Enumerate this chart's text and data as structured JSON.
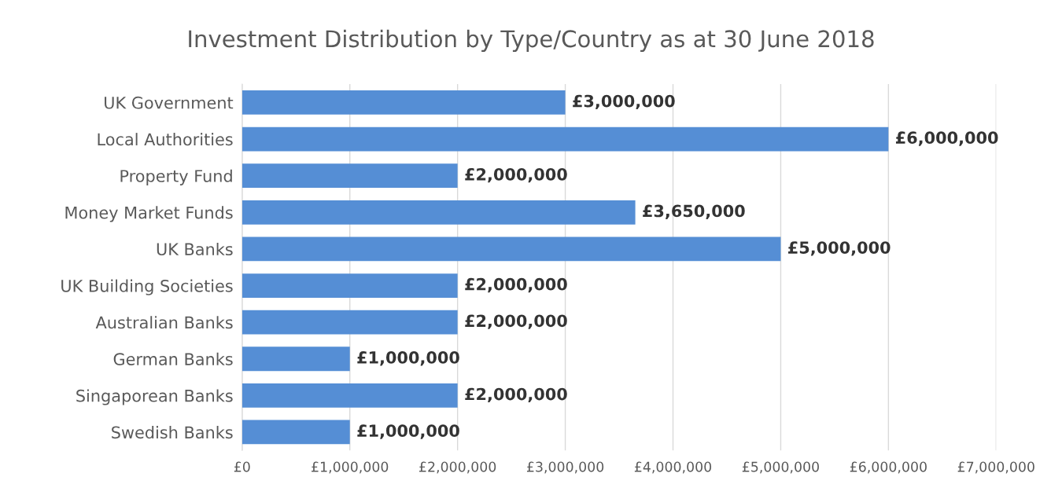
{
  "chart_data": {
    "type": "bar",
    "orientation": "horizontal",
    "title": "Investment Distribution by Type/Country as at 30 June 2018",
    "categories": [
      "UK Government",
      "Local Authorities",
      "Property Fund",
      "Money Market Funds",
      "UK Banks",
      "UK Building Societies",
      "Australian Banks",
      "German Banks",
      "Singaporean Banks",
      "Swedish Banks"
    ],
    "values": [
      3000000,
      6000000,
      2000000,
      3650000,
      5000000,
      2000000,
      2000000,
      1000000,
      2000000,
      1000000
    ],
    "value_labels": [
      "£3,000,000",
      "£6,000,000",
      "£2,000,000",
      "£3,650,000",
      "£5,000,000",
      "£2,000,000",
      "£2,000,000",
      "£1,000,000",
      "£2,000,000",
      "£1,000,000"
    ],
    "color": "#558ed5",
    "xlim": [
      0,
      7000000
    ],
    "xticks": [
      {
        "value": 0,
        "label": "£0"
      },
      {
        "value": 1000000,
        "label": "£1,000,000"
      },
      {
        "value": 2000000,
        "label": "£2,000,000"
      },
      {
        "value": 3000000,
        "label": "£3,000,000"
      },
      {
        "value": 4000000,
        "label": "£4,000,000"
      },
      {
        "value": 5000000,
        "label": "£5,000,000"
      },
      {
        "value": 6000000,
        "label": "£6,000,000"
      },
      {
        "value": 7000000,
        "label": "£7,000,000"
      }
    ],
    "grid": "x"
  }
}
